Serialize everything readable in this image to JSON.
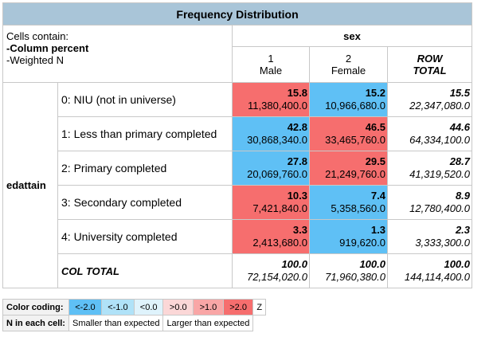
{
  "title": "Frequency Distribution",
  "cells_info": {
    "line1": "Cells contain:",
    "line2": "-Column percent",
    "line3": "-Weighted N"
  },
  "col_var": "sex",
  "row_var": "edattain",
  "columns": [
    {
      "code": "1",
      "label": "Male"
    },
    {
      "code": "2",
      "label": "Female"
    },
    {
      "code": "ROW",
      "label": "TOTAL"
    }
  ],
  "rows": [
    {
      "label": "0: NIU (not in universe)",
      "cells": [
        {
          "pct": "15.8",
          "n": "11,380,400.0"
        },
        {
          "pct": "15.2",
          "n": "10,966,680.0"
        },
        {
          "pct": "15.5",
          "n": "22,347,080.0"
        }
      ]
    },
    {
      "label": "1: Less than primary completed",
      "cells": [
        {
          "pct": "42.8",
          "n": "30,868,340.0"
        },
        {
          "pct": "46.5",
          "n": "33,465,760.0"
        },
        {
          "pct": "44.6",
          "n": "64,334,100.0"
        }
      ]
    },
    {
      "label": "2: Primary completed",
      "cells": [
        {
          "pct": "27.8",
          "n": "20,069,760.0"
        },
        {
          "pct": "29.5",
          "n": "21,249,760.0"
        },
        {
          "pct": "28.7",
          "n": "41,319,520.0"
        }
      ]
    },
    {
      "label": "3: Secondary completed",
      "cells": [
        {
          "pct": "10.3",
          "n": "7,421,840.0"
        },
        {
          "pct": "7.4",
          "n": "5,358,560.0"
        },
        {
          "pct": "8.9",
          "n": "12,780,400.0"
        }
      ]
    },
    {
      "label": "4: University completed",
      "cells": [
        {
          "pct": "3.3",
          "n": "2,413,680.0"
        },
        {
          "pct": "1.3",
          "n": "919,620.0"
        },
        {
          "pct": "2.3",
          "n": "3,333,300.0"
        }
      ]
    }
  ],
  "col_total": {
    "label": "COL TOTAL",
    "cells": [
      {
        "pct": "100.0",
        "n": "72,154,020.0"
      },
      {
        "pct": "100.0",
        "n": "71,960,380.0"
      },
      {
        "pct": "100.0",
        "n": "144,114,400.0"
      }
    ]
  },
  "legend": {
    "color_label": "Color coding:",
    "swatches": [
      {
        "text": "<-2.0",
        "color": "#5fc0f5"
      },
      {
        "text": "<-1.0",
        "color": "#b0e2f8"
      },
      {
        "text": "<0.0",
        "color": "#dff3fc"
      },
      {
        "text": ">0.0",
        "color": "#fbd7d7"
      },
      {
        "text": ">1.0",
        "color": "#f9a6a6"
      },
      {
        "text": ">2.0",
        "color": "#f66e6e"
      }
    ],
    "z": "Z",
    "n_label": "N in each cell:",
    "smaller": "Smaller than expected",
    "larger": "Larger than expected"
  },
  "colors": {
    "header_bg": "#a9c5d8",
    "high": "#f66e6e",
    "low": "#5fc0f5"
  }
}
